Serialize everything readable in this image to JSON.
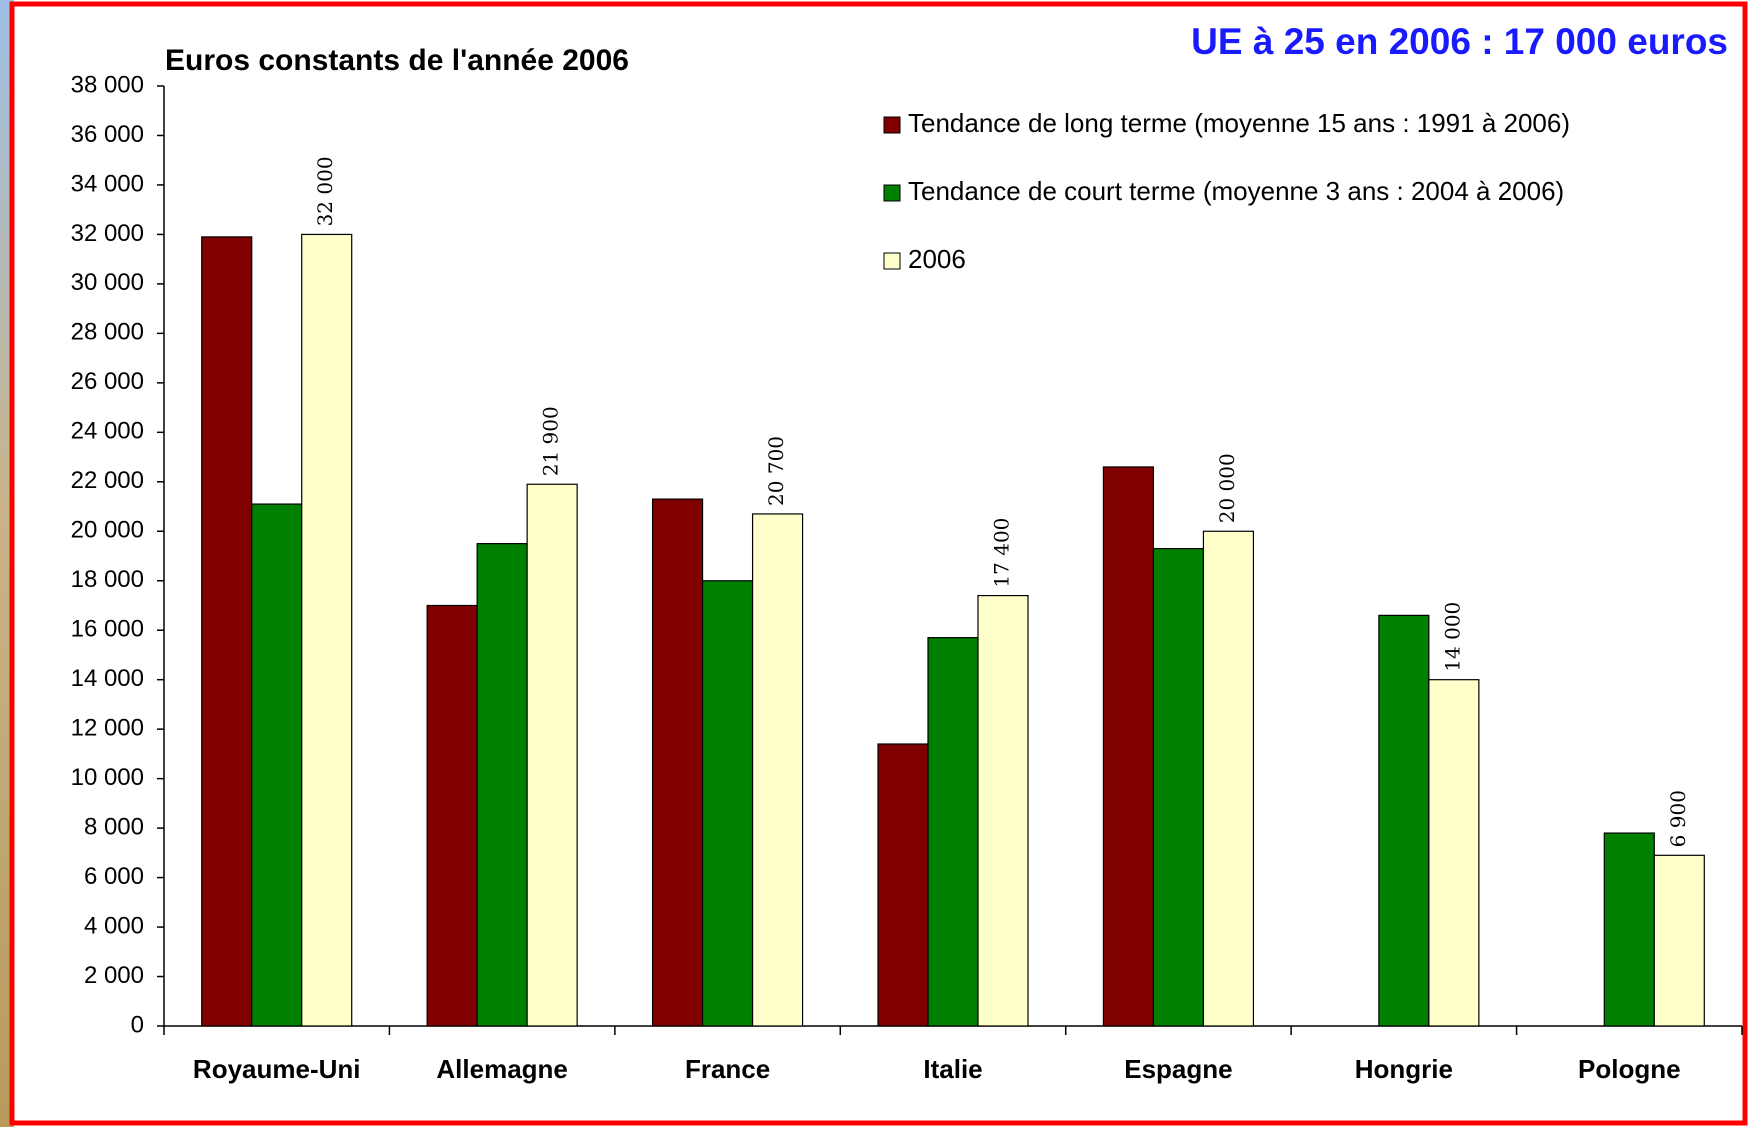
{
  "chart_data": {
    "type": "bar",
    "header": "UE à 25 en 2006 : 17 000 euros",
    "title": "Euros constants de l'année 2006",
    "categories": [
      "Royaume-Uni",
      "Allemagne",
      "France",
      "Italie",
      "Espagne",
      "Hongrie",
      "Pologne"
    ],
    "series": [
      {
        "name": "Tendance de long terme (moyenne 15 ans : 1991 à 2006)",
        "color": "#800000",
        "values": [
          31900,
          17000,
          21300,
          11400,
          22600,
          null,
          null
        ]
      },
      {
        "name": "Tendance de court terme (moyenne 3 ans : 2004 à 2006)",
        "color": "#008000",
        "values": [
          21100,
          19500,
          18000,
          15700,
          19300,
          16600,
          7800
        ]
      },
      {
        "name": "2006",
        "color": "#ffffcc",
        "values": [
          32000,
          21900,
          20700,
          17400,
          20000,
          14000,
          6900
        ],
        "value_labels": [
          "32 000",
          "21 900",
          "20 700",
          "17 400",
          "20 000",
          "14 000",
          "6 900"
        ]
      }
    ],
    "ylim": [
      0,
      38000
    ],
    "yticks": [
      0,
      {
        "value": 2000,
        "label": "2 000"
      },
      {
        "value": 4000,
        "label": "4 000"
      },
      {
        "value": 6000,
        "label": "6 000"
      },
      {
        "value": 8000,
        "label": "8 000"
      },
      {
        "value": 10000,
        "label": "10 000"
      },
      {
        "value": 12000,
        "label": "12 000"
      },
      {
        "value": 14000,
        "label": "14 000"
      },
      {
        "value": 16000,
        "label": "16 000"
      },
      {
        "value": 18000,
        "label": "18 000"
      },
      {
        "value": 20000,
        "label": "20 000"
      },
      {
        "value": 22000,
        "label": "22 000"
      },
      {
        "value": 24000,
        "label": "24 000"
      },
      {
        "value": 26000,
        "label": "26 000"
      },
      {
        "value": 28000,
        "label": "28 000"
      },
      {
        "value": 30000,
        "label": "30 000"
      },
      {
        "value": 32000,
        "label": "32 000"
      },
      {
        "value": 34000,
        "label": "34 000"
      },
      {
        "value": 36000,
        "label": "36 000"
      },
      {
        "value": 38000,
        "label": "38 000"
      }
    ],
    "grid": false
  }
}
